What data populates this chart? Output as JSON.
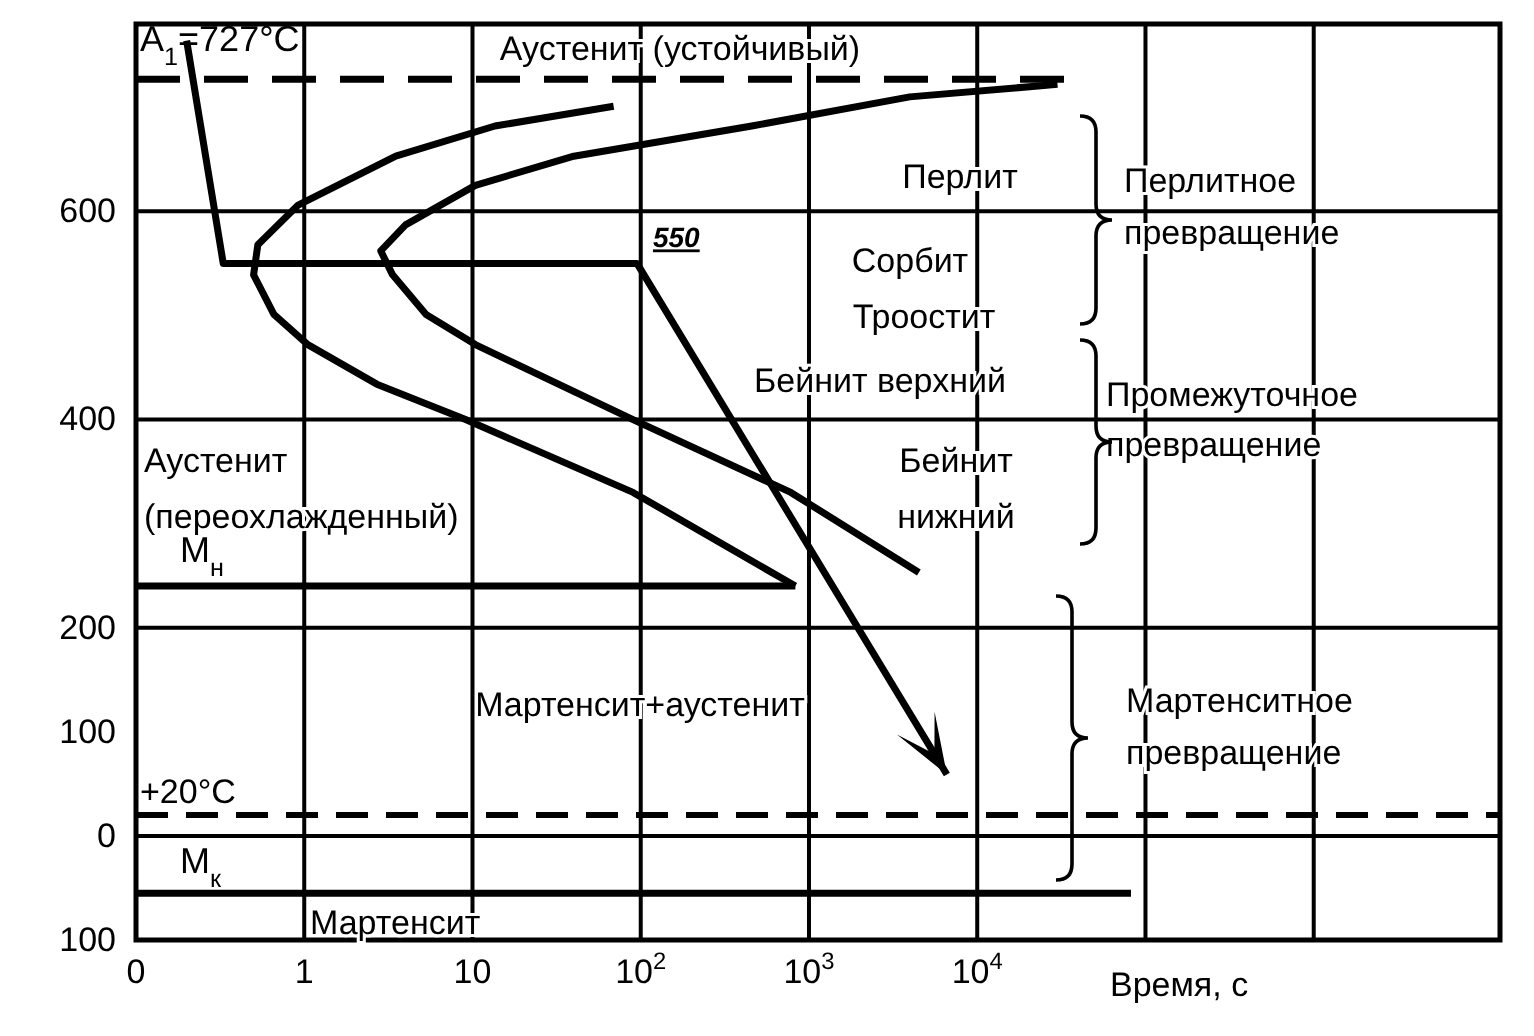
{
  "chart_data": {
    "type": "line",
    "xlabel": "Время, с",
    "log": "x",
    "grid": "x",
    "xlim": [
      0.1,
      12800000
    ],
    "ylim": [
      -100,
      780
    ],
    "xticks": [
      {
        "value": 0.1,
        "label": "0"
      },
      1,
      10,
      {
        "value": 100,
        "label": "10$^{2}$"
      },
      {
        "value": 1000,
        "label": "10$^{3}$"
      },
      {
        "value": 10000,
        "label": "10$^{4}$"
      },
      {
        "value": 100000,
        "label": null
      },
      {
        "value": 1000000,
        "label": null
      }
    ],
    "yticks": [
      600,
      400,
      200,
      100,
      0,
      {
        "value": -100,
        "label": "100"
      }
    ],
    "series": [
      {
        "name": "A$_{1}$=727°C",
        "color": "#000000",
        "line_style": "dashed",
        "x": [
          0.1,
          34000
        ],
        "values": [
          727,
          727
        ]
      },
      {
        "color": "#000000",
        "x": [
          69,
          13.6,
          3.5,
          0.92,
          0.53,
          0.5,
          0.66,
          1.05,
          2.7,
          9.1,
          90,
          830
        ],
        "values": [
          701,
          682,
          653,
          606,
          568,
          539,
          501,
          472,
          434,
          400,
          330,
          240
        ]
      },
      {
        "color": "#000000",
        "x": [
          30000,
          3970,
          457,
          40,
          10.4,
          4,
          2.85,
          3.35,
          5.3,
          10.4,
          90,
          780,
          4500
        ],
        "values": [
          722,
          710,
          682,
          653,
          625,
          587,
          562,
          539,
          501,
          472,
          400,
          330,
          253
        ]
      },
      {
        "color": "#000000",
        "x": [
          0.2,
          0.33,
          95,
          6600
        ],
        "values": [
          764,
          550,
          550,
          59
        ]
      },
      {
        "name": "M$_{н}$",
        "color": "#000000",
        "x": [
          0.1,
          830
        ],
        "values": [
          240,
          240
        ]
      },
      {
        "name": "M$_{к}$",
        "color": "#000000",
        "x": [
          0.1,
          82000
        ],
        "values": [
          -55,
          -55
        ]
      }
    ],
    "ref_lines": [
      {
        "axis": "y",
        "value": 600
      },
      {
        "axis": "y",
        "value": 400
      },
      {
        "axis": "y",
        "value": 200
      },
      {
        "axis": "y",
        "value": 0
      },
      {
        "axis": "y",
        "value": 20,
        "label": "+20°C",
        "line_style": "dashed"
      }
    ],
    "annotations": [
      {
        "text": "550",
        "x": 95,
        "y": 550
      },
      "Аустенит (устойчивый)",
      "Перлит",
      "Сорбит",
      "Троостит",
      "Бейнит верхний",
      "Бейнит",
      "нижний",
      "Аустенит",
      "(переохлажденный)",
      "Мартенсит+аустенит",
      "Мартенсит",
      "Перлитное",
      "превращение",
      "Промежуточное",
      "превращение",
      "Мартенситное",
      "превращение"
    ]
  }
}
